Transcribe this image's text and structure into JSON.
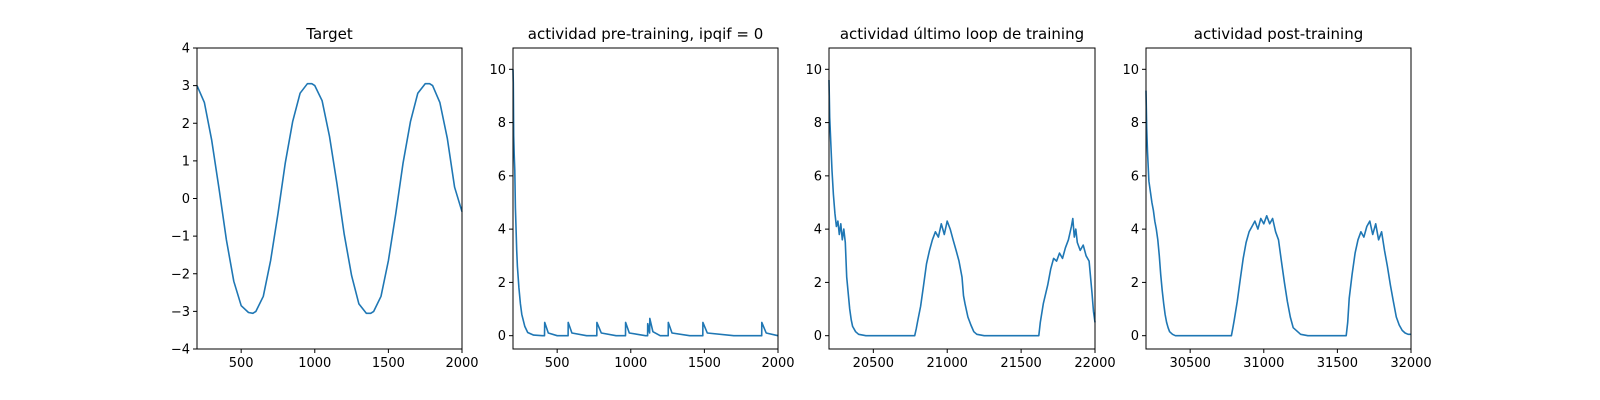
{
  "line_color": "#1f77b4",
  "chart_data": [
    {
      "type": "line",
      "title": "Target",
      "xlabel": "",
      "ylabel": "",
      "xlim": [
        200,
        2000
      ],
      "ylim": [
        -4,
        4
      ],
      "x_ticks": [
        500,
        1000,
        1500,
        2000
      ],
      "y_ticks": [
        -4,
        -3,
        -2,
        -1,
        0,
        1,
        2,
        3,
        4
      ],
      "grid": false,
      "series": [
        {
          "x": [
            200,
            250,
            300,
            350,
            400,
            450,
            500,
            550,
            580,
            600,
            650,
            700,
            750,
            800,
            850,
            900,
            950,
            980,
            1000,
            1050,
            1100,
            1150,
            1200,
            1250,
            1300,
            1350,
            1380,
            1400,
            1450,
            1500,
            1550,
            1600,
            1650,
            1700,
            1750,
            1780,
            1800,
            1850,
            1900,
            1950,
            2000
          ],
          "y": [
            3.0,
            2.55,
            1.55,
            0.25,
            -1.1,
            -2.2,
            -2.85,
            -3.03,
            -3.05,
            -3.0,
            -2.6,
            -1.65,
            -0.4,
            0.95,
            2.05,
            2.8,
            3.05,
            3.05,
            3.0,
            2.6,
            1.65,
            0.4,
            -0.95,
            -2.05,
            -2.8,
            -3.05,
            -3.05,
            -3.0,
            -2.6,
            -1.65,
            -0.4,
            0.95,
            2.05,
            2.8,
            3.05,
            3.05,
            3.0,
            2.55,
            1.6,
            0.3,
            -0.35
          ]
        }
      ]
    },
    {
      "type": "line",
      "title": "actividad pre-training, ipqif = 0",
      "xlabel": "",
      "ylabel": "",
      "xlim": [
        200,
        2000
      ],
      "ylim": [
        -0.5,
        10.8
      ],
      "x_ticks": [
        500,
        1000,
        1500,
        2000
      ],
      "y_ticks": [
        0,
        2,
        4,
        6,
        8,
        10
      ],
      "grid": false,
      "series": [
        {
          "x": [
            200,
            202,
            205,
            208,
            212,
            216,
            220,
            225,
            230,
            240,
            250,
            260,
            280,
            300,
            340,
            400,
            414,
            415,
            440,
            500,
            574,
            575,
            600,
            700,
            769,
            770,
            800,
            900,
            964,
            965,
            990,
            1100,
            1114,
            1115,
            1128,
            1129,
            1150,
            1200,
            1254,
            1255,
            1280,
            1400,
            1489,
            1490,
            1520,
            1700,
            1889,
            1890,
            1920,
            2000
          ],
          "y": [
            10.0,
            9.5,
            7.5,
            6.8,
            6.2,
            4.8,
            4.2,
            3.2,
            2.6,
            1.8,
            1.2,
            0.8,
            0.35,
            0.12,
            0.02,
            0.0,
            0.0,
            0.5,
            0.1,
            0.0,
            0.0,
            0.5,
            0.1,
            0.0,
            0.0,
            0.5,
            0.1,
            0.0,
            0.0,
            0.5,
            0.1,
            0.0,
            0.0,
            0.45,
            0.1,
            0.65,
            0.15,
            0.0,
            0.0,
            0.5,
            0.1,
            0.0,
            0.0,
            0.5,
            0.1,
            0.0,
            0.0,
            0.5,
            0.1,
            0.0
          ]
        }
      ]
    },
    {
      "type": "line",
      "title": "actividad último loop de training",
      "xlabel": "",
      "ylabel": "",
      "xlim": [
        20200,
        22000
      ],
      "ylim": [
        -0.5,
        10.8
      ],
      "x_ticks": [
        20500,
        21000,
        21500,
        22000
      ],
      "y_ticks": [
        0,
        2,
        4,
        6,
        8,
        10
      ],
      "grid": false,
      "series": [
        {
          "x": [
            20200,
            20205,
            20210,
            20220,
            20230,
            20240,
            20250,
            20260,
            20270,
            20280,
            20290,
            20300,
            20310,
            20320,
            20330,
            20340,
            20350,
            20360,
            20380,
            20400,
            20450,
            20500,
            20600,
            20700,
            20780,
            20790,
            20800,
            20820,
            20840,
            20860,
            20880,
            20900,
            20920,
            20940,
            20960,
            20980,
            21000,
            21020,
            21040,
            21060,
            21080,
            21100,
            21110,
            21120,
            21140,
            21160,
            21180,
            21200,
            21250,
            21300,
            21400,
            21500,
            21600,
            21620,
            21630,
            21650,
            21680,
            21700,
            21720,
            21740,
            21760,
            21780,
            21800,
            21820,
            21840,
            21850,
            21860,
            21870,
            21880,
            21900,
            21920,
            21940,
            21960,
            21980,
            21990,
            22000
          ],
          "y": [
            9.6,
            8.2,
            7.5,
            6.2,
            5.3,
            4.6,
            4.1,
            4.3,
            3.8,
            4.2,
            3.6,
            4.0,
            3.5,
            2.2,
            1.6,
            1.0,
            0.6,
            0.35,
            0.15,
            0.05,
            0.0,
            0.0,
            0.0,
            0.0,
            0.0,
            0.25,
            0.55,
            1.1,
            1.9,
            2.7,
            3.2,
            3.6,
            3.9,
            3.7,
            4.2,
            3.8,
            4.3,
            4.0,
            3.6,
            3.2,
            2.8,
            2.2,
            1.5,
            1.2,
            0.7,
            0.4,
            0.15,
            0.05,
            0.0,
            0.0,
            0.0,
            0.0,
            0.0,
            0.0,
            0.5,
            1.2,
            1.9,
            2.5,
            2.9,
            2.8,
            3.1,
            2.9,
            3.3,
            3.6,
            4.1,
            4.4,
            3.7,
            4.0,
            3.5,
            3.2,
            3.4,
            3.0,
            2.8,
            1.6,
            0.9,
            0.5
          ]
        }
      ]
    },
    {
      "type": "line",
      "title": "actividad post-training",
      "xlabel": "",
      "ylabel": "",
      "xlim": [
        30200,
        32000
      ],
      "ylim": [
        -0.5,
        10.8
      ],
      "x_ticks": [
        30500,
        31000,
        31500,
        32000
      ],
      "y_ticks": [
        0,
        2,
        4,
        6,
        8,
        10
      ],
      "grid": false,
      "series": [
        {
          "x": [
            30200,
            30205,
            30210,
            30220,
            30230,
            30240,
            30250,
            30260,
            30270,
            30280,
            30290,
            30300,
            30310,
            30320,
            30330,
            30340,
            30350,
            30360,
            30380,
            30400,
            30450,
            30500,
            30600,
            30700,
            30770,
            30780,
            30790,
            30800,
            30820,
            30840,
            30860,
            30880,
            30900,
            30920,
            30940,
            30960,
            30980,
            31000,
            31020,
            31040,
            31060,
            31080,
            31100,
            31120,
            31140,
            31160,
            31180,
            31200,
            31250,
            31300,
            31400,
            31500,
            31560,
            31570,
            31580,
            31600,
            31620,
            31640,
            31660,
            31680,
            31700,
            31720,
            31740,
            31760,
            31780,
            31800,
            31820,
            31840,
            31860,
            31880,
            31900,
            31920,
            31940,
            31960,
            31980,
            32000
          ],
          "y": [
            9.2,
            7.8,
            6.9,
            5.8,
            5.4,
            5.0,
            4.7,
            4.3,
            4.0,
            3.6,
            3.0,
            2.3,
            1.7,
            1.2,
            0.8,
            0.5,
            0.3,
            0.15,
            0.05,
            0.0,
            0.0,
            0.0,
            0.0,
            0.0,
            0.0,
            0.0,
            0.3,
            0.6,
            1.3,
            2.1,
            2.9,
            3.5,
            3.9,
            4.1,
            4.3,
            4.0,
            4.4,
            4.2,
            4.5,
            4.2,
            4.4,
            3.9,
            3.6,
            2.8,
            2.0,
            1.3,
            0.7,
            0.3,
            0.05,
            0.0,
            0.0,
            0.0,
            0.0,
            0.5,
            1.4,
            2.3,
            3.1,
            3.6,
            3.9,
            3.7,
            4.1,
            4.3,
            3.8,
            4.2,
            3.6,
            3.9,
            3.2,
            2.6,
            1.9,
            1.3,
            0.7,
            0.4,
            0.2,
            0.1,
            0.05,
            0.05
          ]
        }
      ]
    }
  ]
}
